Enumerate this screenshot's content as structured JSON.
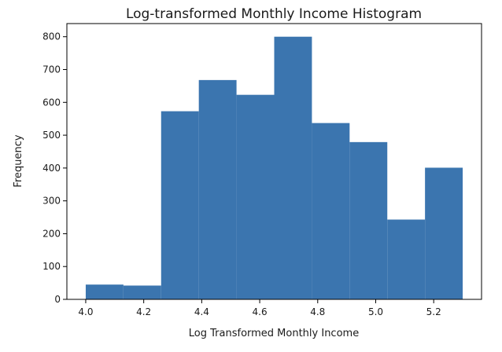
{
  "chart_data": {
    "type": "bar",
    "title": "Log-transformed Monthly Income Histogram",
    "xlabel": "Log Transformed Monthly Income",
    "ylabel": "Frequency",
    "bar_color": "#3b75af",
    "bins": [
      {
        "x0": 4.0,
        "x1": 4.13,
        "value": 45
      },
      {
        "x0": 4.13,
        "x1": 4.26,
        "value": 42
      },
      {
        "x0": 4.26,
        "x1": 4.39,
        "value": 573
      },
      {
        "x0": 4.39,
        "x1": 4.52,
        "value": 668
      },
      {
        "x0": 4.52,
        "x1": 4.65,
        "value": 623
      },
      {
        "x0": 4.65,
        "x1": 4.78,
        "value": 800
      },
      {
        "x0": 4.78,
        "x1": 4.91,
        "value": 537
      },
      {
        "x0": 4.91,
        "x1": 5.04,
        "value": 479
      },
      {
        "x0": 5.04,
        "x1": 5.17,
        "value": 243
      },
      {
        "x0": 5.17,
        "x1": 5.3,
        "value": 401
      }
    ],
    "xlim": [
      3.935,
      5.365
    ],
    "ylim": [
      0,
      840
    ],
    "xticks": [
      {
        "value": 4.0,
        "label": "4.0"
      },
      {
        "value": 4.2,
        "label": "4.2"
      },
      {
        "value": 4.4,
        "label": "4.4"
      },
      {
        "value": 4.6,
        "label": "4.6"
      },
      {
        "value": 4.8,
        "label": "4.8"
      },
      {
        "value": 5.0,
        "label": "5.0"
      },
      {
        "value": 5.2,
        "label": "5.2"
      }
    ],
    "yticks": [
      {
        "value": 0,
        "label": "0"
      },
      {
        "value": 100,
        "label": "100"
      },
      {
        "value": 200,
        "label": "200"
      },
      {
        "value": 300,
        "label": "300"
      },
      {
        "value": 400,
        "label": "400"
      },
      {
        "value": 500,
        "label": "500"
      },
      {
        "value": 600,
        "label": "600"
      },
      {
        "value": 700,
        "label": "700"
      },
      {
        "value": 800,
        "label": "800"
      }
    ],
    "grid": false,
    "legend": "none"
  }
}
